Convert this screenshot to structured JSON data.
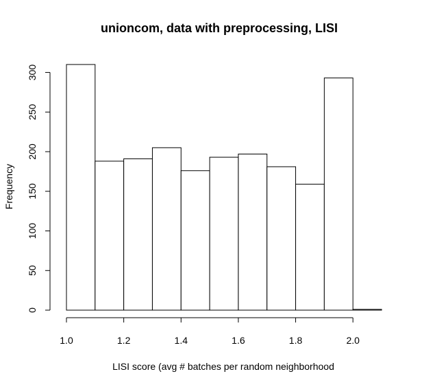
{
  "chart_data": {
    "type": "bar",
    "title": "unioncom, data with preprocessing, LISI",
    "xlabel": "LISI score (avg # batches per random neighborhood",
    "ylabel": "Frequency",
    "bins": [
      {
        "start": 1.0,
        "end": 1.1,
        "value": 310
      },
      {
        "start": 1.1,
        "end": 1.2,
        "value": 188
      },
      {
        "start": 1.2,
        "end": 1.3,
        "value": 191
      },
      {
        "start": 1.3,
        "end": 1.4,
        "value": 205
      },
      {
        "start": 1.4,
        "end": 1.5,
        "value": 176
      },
      {
        "start": 1.5,
        "end": 1.6,
        "value": 193
      },
      {
        "start": 1.6,
        "end": 1.7,
        "value": 197
      },
      {
        "start": 1.7,
        "end": 1.8,
        "value": 181
      },
      {
        "start": 1.8,
        "end": 1.9,
        "value": 159
      },
      {
        "start": 1.9,
        "end": 2.0,
        "value": 293
      },
      {
        "start": 2.0,
        "end": 2.1,
        "value": 1
      }
    ],
    "xlim": [
      1.0,
      2.1
    ],
    "ylim": [
      0,
      310
    ],
    "xticks": [
      1.0,
      1.2,
      1.4,
      1.6,
      1.8,
      2.0
    ],
    "xtick_labels": [
      "1.0",
      "1.2",
      "1.4",
      "1.6",
      "1.8",
      "2.0"
    ],
    "yticks": [
      0,
      50,
      100,
      150,
      200,
      250,
      300
    ],
    "ytick_labels": [
      "0",
      "50",
      "100",
      "150",
      "200",
      "250",
      "300"
    ],
    "grid": false,
    "bar_fill": "#ffffff",
    "bar_stroke": "#000000"
  }
}
